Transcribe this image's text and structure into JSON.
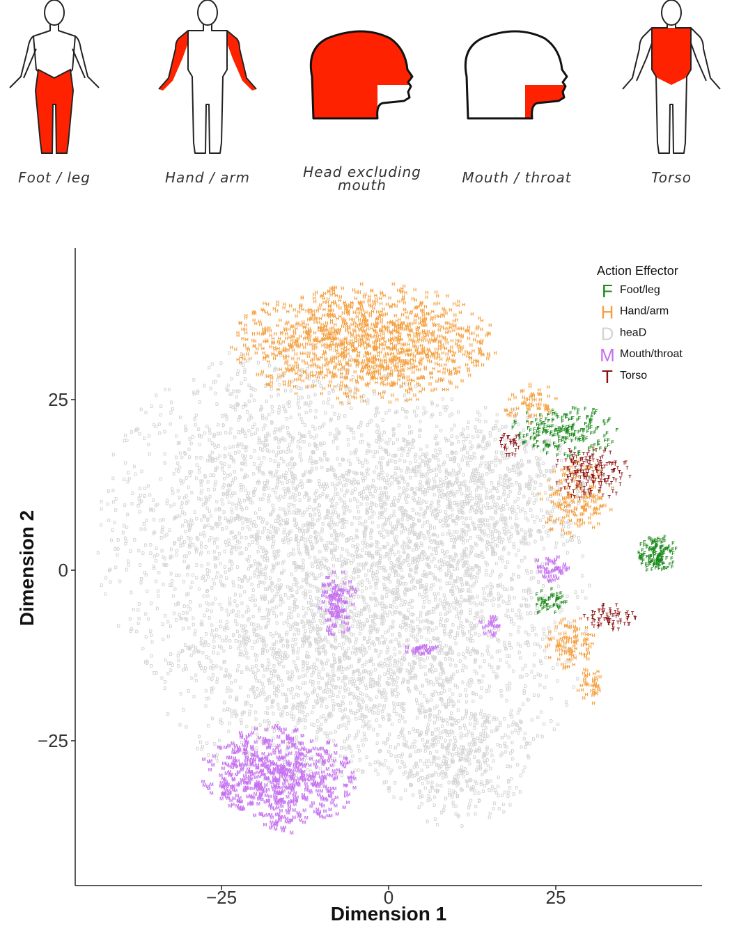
{
  "figures": [
    {
      "key": "foot_leg",
      "label": "Foot / leg",
      "highlight": "legs"
    },
    {
      "key": "hand_arm",
      "label": "Hand / arm",
      "highlight": "arms"
    },
    {
      "key": "head",
      "label": "Head excluding\nmouth",
      "highlight": "head"
    },
    {
      "key": "mouth",
      "label": "Mouth / throat",
      "highlight": "mouth"
    },
    {
      "key": "torso",
      "label": "Torso",
      "highlight": "torso"
    }
  ],
  "highlight_color": "#ff2200",
  "chart_data": {
    "type": "scatter",
    "xlabel": "Dimension 1",
    "ylabel": "Dimension 2",
    "xlim": [
      -45,
      45
    ],
    "ylim": [
      -46,
      47
    ],
    "xticks": [
      -25,
      0,
      25
    ],
    "yticks": [
      25,
      0,
      -25
    ],
    "xtick_labels": [
      "−25",
      "0",
      "25"
    ],
    "ytick_labels": [
      "25",
      "0",
      "−25"
    ],
    "legend": {
      "title": "Action Effector",
      "position": "top-right",
      "entries": [
        {
          "letter": "F",
          "name": "Foot/leg",
          "color": "#1a8a1a"
        },
        {
          "letter": "H",
          "name": "Hand/arm",
          "color": "#f5a040"
        },
        {
          "letter": "D",
          "name": "heaD",
          "color": "#d4d4d4"
        },
        {
          "letter": "M",
          "name": "Mouth/throat",
          "color": "#c56ff0"
        },
        {
          "letter": "T",
          "name": "Torso",
          "color": "#8b0f0f"
        }
      ]
    },
    "series": [
      {
        "letter": "D",
        "color": "#d4d4d4",
        "clusters": [
          {
            "cx": -15,
            "cy": 5,
            "rx": 30,
            "ry": 28,
            "n": 2600
          },
          {
            "cx": 8,
            "cy": -5,
            "rx": 22,
            "ry": 30,
            "n": 1600
          },
          {
            "cx": -12,
            "cy": -18,
            "rx": 22,
            "ry": 14,
            "n": 700
          },
          {
            "cx": 10,
            "cy": -28,
            "rx": 12,
            "ry": 10,
            "n": 400
          },
          {
            "cx": 15,
            "cy": 12,
            "rx": 15,
            "ry": 12,
            "n": 500
          }
        ]
      },
      {
        "letter": "H",
        "color": "#f5a040",
        "clusters": [
          {
            "cx": -4,
            "cy": 33,
            "rx": 20,
            "ry": 9,
            "n": 1300
          },
          {
            "cx": 28,
            "cy": 10,
            "rx": 6,
            "ry": 6,
            "n": 160
          },
          {
            "cx": 27,
            "cy": -11,
            "rx": 4,
            "ry": 4,
            "n": 100
          },
          {
            "cx": 30,
            "cy": -17,
            "rx": 2,
            "ry": 3,
            "n": 40
          },
          {
            "cx": 21,
            "cy": 24,
            "rx": 4,
            "ry": 4,
            "n": 60
          }
        ]
      },
      {
        "letter": "M",
        "color": "#c56ff0",
        "clusters": [
          {
            "cx": -17,
            "cy": -31,
            "rx": 12,
            "ry": 8,
            "n": 650
          },
          {
            "cx": -8,
            "cy": -5,
            "rx": 3,
            "ry": 5,
            "n": 100
          },
          {
            "cx": 5,
            "cy": -12,
            "rx": 3,
            "ry": 1,
            "n": 30
          },
          {
            "cx": 24,
            "cy": 0,
            "rx": 3,
            "ry": 2,
            "n": 40
          },
          {
            "cx": 15,
            "cy": -8,
            "rx": 2,
            "ry": 2,
            "n": 20
          }
        ]
      },
      {
        "letter": "F",
        "color": "#1a8a1a",
        "clusters": [
          {
            "cx": 40,
            "cy": 2,
            "rx": 3,
            "ry": 3,
            "n": 140
          },
          {
            "cx": 26,
            "cy": 20,
            "rx": 8,
            "ry": 4,
            "n": 200
          },
          {
            "cx": 24,
            "cy": -5,
            "rx": 3,
            "ry": 2,
            "n": 50
          }
        ]
      },
      {
        "letter": "T",
        "color": "#8b0f0f",
        "clusters": [
          {
            "cx": 30,
            "cy": 14,
            "rx": 6,
            "ry": 4,
            "n": 180
          },
          {
            "cx": 33,
            "cy": -7,
            "rx": 4,
            "ry": 2,
            "n": 70
          },
          {
            "cx": 18,
            "cy": 18,
            "rx": 2,
            "ry": 2,
            "n": 30
          }
        ]
      }
    ]
  }
}
